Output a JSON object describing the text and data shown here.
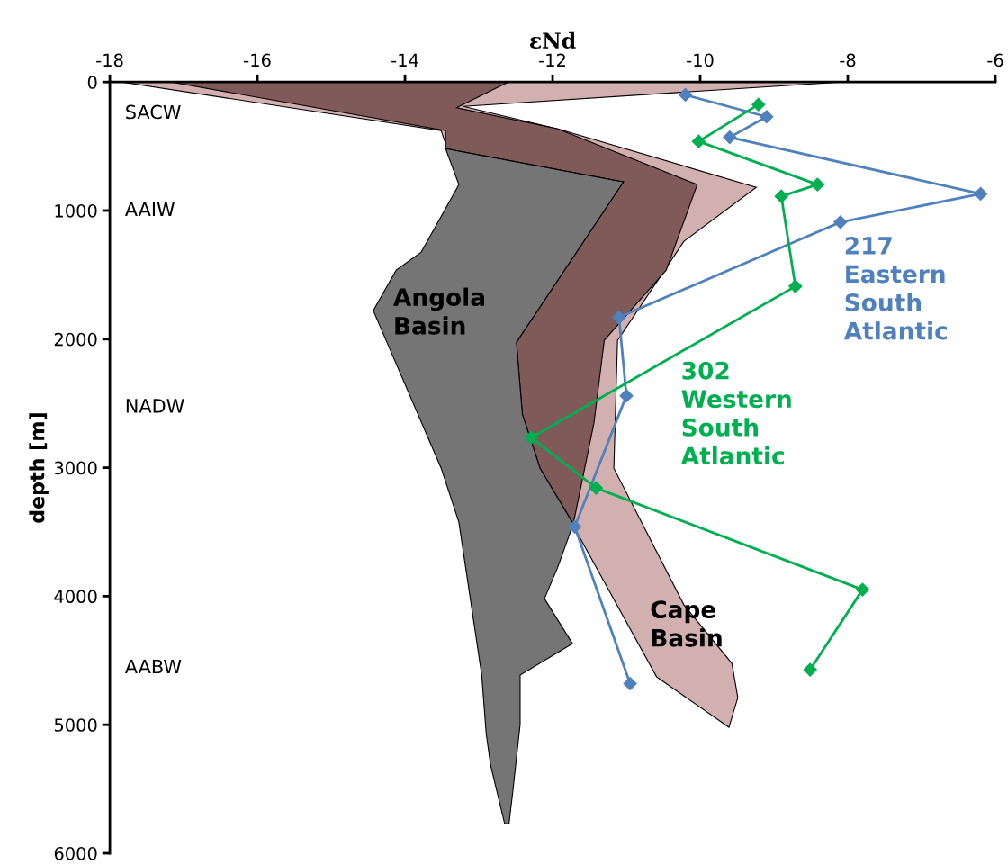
{
  "chart_data": {
    "type": "line",
    "xlabel": "εNd",
    "ylabel": "depth [m]",
    "xlim": [
      -18,
      -6
    ],
    "xticks": [
      -18,
      -16,
      -14,
      -12,
      -10,
      -8,
      -6
    ],
    "ylim": [
      6000,
      0
    ],
    "yticks": [
      0,
      1000,
      2000,
      3000,
      4000,
      5000,
      6000
    ],
    "grid": false,
    "legend": false,
    "line_style": "solid",
    "series": [
      {
        "type": "area",
        "name": "Cape Basin",
        "color": "#d3b0b0",
        "x": [
          -8.09,
          -13.21,
          -11.93,
          -9.24,
          -10.22,
          -11.12,
          -11.17,
          -10.22,
          -9.57,
          -9.49,
          -9.61,
          -10.59,
          -11.68,
          -13.51,
          -17.84
        ],
        "values": [
          0,
          189,
          364,
          819,
          1239,
          2009,
          3004,
          4068,
          4523,
          4789,
          5020,
          4628,
          3494,
          378,
          0
        ]
      },
      {
        "type": "area",
        "color": "#7f5a58",
        "x": [
          -17.17,
          -12.6,
          -13.3,
          -11.93,
          -10.04,
          -10.46,
          -11.3,
          -11.44,
          -11.72,
          -12.17,
          -12.41,
          -12.49,
          -11.04,
          -13.45,
          -13.45
        ],
        "values": [
          0,
          0,
          200,
          364,
          798,
          1463,
          2009,
          2654,
          3438,
          3004,
          2583,
          2023,
          777,
          518,
          378
        ]
      },
      {
        "type": "area",
        "name": "Angola Basin",
        "color": "#757575",
        "x": [
          -13.45,
          -11.04,
          -12.49,
          -12.41,
          -12.17,
          -11.72,
          -11.93,
          -12.11,
          -11.73,
          -12.44,
          -12.44,
          -12.54,
          -12.59,
          -12.65,
          -12.84,
          -12.9,
          -12.96,
          -13.27,
          -13.51,
          -14.43,
          -14.12,
          -13.78,
          -13.27
        ],
        "values": [
          518,
          777,
          2023,
          2583,
          3004,
          3438,
          3774,
          4019,
          4369,
          4614,
          4999,
          5524,
          5769,
          5769,
          5314,
          5069,
          4614,
          3424,
          3004,
          1778,
          1463,
          1323,
          798
        ]
      },
      {
        "name": "217 Eastern South Atlantic",
        "color": "#4f81bd",
        "marker": "diamond",
        "x": [
          -10.2,
          -9.1,
          -9.6,
          -6.2,
          -8.1,
          -11.1,
          -11.0,
          -11.7,
          -10.95
        ],
        "values": [
          100,
          270,
          430,
          870,
          1090,
          1830,
          2440,
          3460,
          4680
        ]
      },
      {
        "name": "302 Western South Atlantic",
        "color": "#00b050",
        "marker": "diamond",
        "x": [
          -9.21,
          -10.02,
          -8.41,
          -8.9,
          -8.71,
          -12.29,
          -11.41,
          -7.8,
          -8.51
        ],
        "values": [
          175,
          462,
          798,
          889,
          1589,
          2766,
          3158,
          3949,
          4572
        ]
      }
    ],
    "annotations": [
      "SACW",
      "AAIW",
      "NADW",
      "AABW"
    ]
  }
}
